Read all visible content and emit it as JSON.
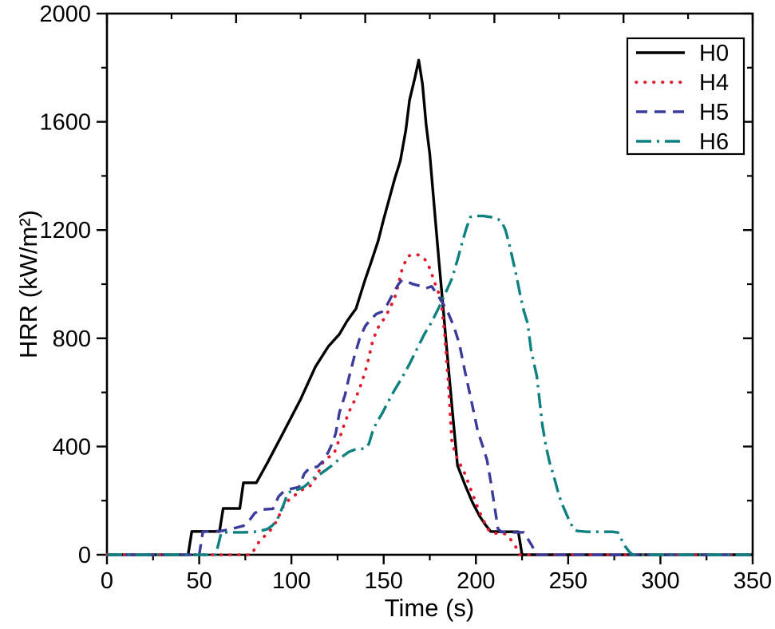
{
  "figure": {
    "background": "#ffffff",
    "frame_color": "#000000"
  },
  "chart_data": {
    "type": "line",
    "title": "",
    "xlabel": "Time (s)",
    "ylabel": "HRR (kW/m²)",
    "xlim": [
      0,
      350
    ],
    "ylim": [
      0,
      2000
    ],
    "grid": false,
    "legend_position": "top-right",
    "x_major_ticks": [
      0,
      50,
      100,
      150,
      200,
      250,
      300,
      350
    ],
    "x_minor_ticks": [
      25,
      75,
      125,
      175,
      225,
      275,
      325
    ],
    "top_major_ticks": [
      0,
      70,
      140,
      210,
      280,
      350
    ],
    "top_minor_ticks": [
      35,
      105,
      175,
      245,
      315
    ],
    "y_major_ticks": [
      0,
      400,
      800,
      1200,
      1600,
      2000
    ],
    "y_minor_ticks": [
      200,
      600,
      1000,
      1400,
      1800
    ],
    "legend_entries": [
      "H0",
      "H4",
      "H5",
      "H6"
    ],
    "series": [
      {
        "name": "H0",
        "color": "#000000",
        "line_style": "solid",
        "points": [
          [
            0,
            0
          ],
          [
            20,
            0
          ],
          [
            44,
            0
          ],
          [
            46,
            86
          ],
          [
            61,
            86
          ],
          [
            63,
            171
          ],
          [
            72,
            171
          ],
          [
            74,
            266
          ],
          [
            81,
            266
          ],
          [
            87,
            340
          ],
          [
            96,
            457
          ],
          [
            105,
            575
          ],
          [
            113,
            695
          ],
          [
            120,
            770
          ],
          [
            126,
            815
          ],
          [
            130,
            862
          ],
          [
            133,
            891
          ],
          [
            135,
            909
          ],
          [
            140,
            1018
          ],
          [
            143,
            1077
          ],
          [
            147,
            1160
          ],
          [
            150,
            1240
          ],
          [
            156,
            1390
          ],
          [
            159,
            1455
          ],
          [
            162,
            1570
          ],
          [
            164,
            1680
          ],
          [
            167,
            1765
          ],
          [
            169,
            1828
          ],
          [
            171,
            1740
          ],
          [
            173,
            1590
          ],
          [
            175,
            1480
          ],
          [
            178,
            1240
          ],
          [
            180,
            1080
          ],
          [
            182,
            930
          ],
          [
            184,
            775
          ],
          [
            187,
            550
          ],
          [
            190,
            330
          ],
          [
            194,
            260
          ],
          [
            198,
            195
          ],
          [
            202,
            143
          ],
          [
            205,
            112
          ],
          [
            208,
            86
          ],
          [
            215,
            85
          ],
          [
            223,
            85
          ],
          [
            225,
            0
          ],
          [
            260,
            0
          ],
          [
            300,
            0
          ],
          [
            350,
            0
          ]
        ]
      },
      {
        "name": "H4",
        "color": "#e2182d",
        "line_style": "dotted",
        "points": [
          [
            0,
            0
          ],
          [
            30,
            0
          ],
          [
            60,
            0
          ],
          [
            78,
            0
          ],
          [
            81,
            30
          ],
          [
            83,
            55
          ],
          [
            86,
            72
          ],
          [
            88,
            85
          ],
          [
            92,
            125
          ],
          [
            96,
            185
          ],
          [
            99,
            205
          ],
          [
            101,
            215
          ],
          [
            104,
            232
          ],
          [
            107,
            245
          ],
          [
            111,
            258
          ],
          [
            114,
            295
          ],
          [
            117,
            340
          ],
          [
            120,
            360
          ],
          [
            123,
            372
          ],
          [
            126,
            428
          ],
          [
            129,
            490
          ],
          [
            132,
            540
          ],
          [
            135,
            580
          ],
          [
            138,
            635
          ],
          [
            141,
            700
          ],
          [
            144,
            790
          ],
          [
            147,
            840
          ],
          [
            150,
            870
          ],
          [
            153,
            905
          ],
          [
            156,
            950
          ],
          [
            158,
            1000
          ],
          [
            160,
            1056
          ],
          [
            163,
            1103
          ],
          [
            166,
            1110
          ],
          [
            169,
            1108
          ],
          [
            172,
            1095
          ],
          [
            175,
            1058
          ],
          [
            178,
            1000
          ],
          [
            181,
            945
          ],
          [
            183,
            820
          ],
          [
            185,
            640
          ],
          [
            187,
            413
          ],
          [
            190,
            354
          ],
          [
            194,
            300
          ],
          [
            197,
            245
          ],
          [
            200,
            192
          ],
          [
            203,
            142
          ],
          [
            207,
            89
          ],
          [
            210,
            80
          ],
          [
            216,
            77
          ],
          [
            219,
            55
          ],
          [
            222,
            25
          ],
          [
            224,
            0
          ],
          [
            260,
            0
          ],
          [
            310,
            0
          ],
          [
            350,
            0
          ]
        ]
      },
      {
        "name": "H5",
        "color": "#3b3b9c",
        "line_style": "dashed",
        "points": [
          [
            0,
            0
          ],
          [
            25,
            0
          ],
          [
            50,
            0
          ],
          [
            52,
            85
          ],
          [
            57,
            87
          ],
          [
            62,
            88
          ],
          [
            66,
            93
          ],
          [
            70,
            100
          ],
          [
            74,
            107
          ],
          [
            77,
            125
          ],
          [
            80,
            153
          ],
          [
            83,
            166
          ],
          [
            86,
            168
          ],
          [
            90,
            170
          ],
          [
            93,
            215
          ],
          [
            96,
            235
          ],
          [
            100,
            244
          ],
          [
            104,
            250
          ],
          [
            107,
            300
          ],
          [
            110,
            322
          ],
          [
            114,
            325
          ],
          [
            117,
            345
          ],
          [
            120,
            380
          ],
          [
            122,
            410
          ],
          [
            124,
            448
          ],
          [
            126,
            525
          ],
          [
            129,
            590
          ],
          [
            131,
            650
          ],
          [
            134,
            730
          ],
          [
            137,
            800
          ],
          [
            140,
            845
          ],
          [
            143,
            870
          ],
          [
            146,
            890
          ],
          [
            149,
            898
          ],
          [
            152,
            925
          ],
          [
            155,
            965
          ],
          [
            158,
            1000
          ],
          [
            160,
            1015
          ],
          [
            163,
            1008
          ],
          [
            166,
            1000
          ],
          [
            170,
            993
          ],
          [
            173,
            985
          ],
          [
            176,
            992
          ],
          [
            179,
            962
          ],
          [
            182,
            930
          ],
          [
            185,
            893
          ],
          [
            188,
            845
          ],
          [
            191,
            780
          ],
          [
            194,
            680
          ],
          [
            197,
            585
          ],
          [
            201,
            457
          ],
          [
            204,
            395
          ],
          [
            206,
            350
          ],
          [
            208,
            271
          ],
          [
            210,
            183
          ],
          [
            212,
            95
          ],
          [
            214,
            84
          ],
          [
            220,
            83
          ],
          [
            226,
            83
          ],
          [
            228,
            60
          ],
          [
            230,
            38
          ],
          [
            233,
            0
          ],
          [
            250,
            0
          ],
          [
            300,
            0
          ],
          [
            350,
            0
          ]
        ]
      },
      {
        "name": "H6",
        "color": "#0d8080",
        "line_style": "dash-dot",
        "points": [
          [
            0,
            0
          ],
          [
            30,
            0
          ],
          [
            59,
            0
          ],
          [
            62,
            83
          ],
          [
            68,
            83
          ],
          [
            74,
            83
          ],
          [
            79,
            84
          ],
          [
            83,
            88
          ],
          [
            87,
            95
          ],
          [
            90,
            110
          ],
          [
            93,
            140
          ],
          [
            96,
            190
          ],
          [
            98,
            227
          ],
          [
            101,
            240
          ],
          [
            104,
            242
          ],
          [
            107,
            252
          ],
          [
            110,
            270
          ],
          [
            113,
            290
          ],
          [
            116,
            300
          ],
          [
            119,
            315
          ],
          [
            122,
            330
          ],
          [
            125,
            348
          ],
          [
            128,
            365
          ],
          [
            131,
            380
          ],
          [
            134,
            388
          ],
          [
            137,
            391
          ],
          [
            140,
            393
          ],
          [
            142,
            410
          ],
          [
            144,
            455
          ],
          [
            146,
            487
          ],
          [
            149,
            520
          ],
          [
            152,
            560
          ],
          [
            156,
            610
          ],
          [
            160,
            655
          ],
          [
            164,
            705
          ],
          [
            168,
            760
          ],
          [
            172,
            815
          ],
          [
            176,
            860
          ],
          [
            180,
            915
          ],
          [
            184,
            975
          ],
          [
            187,
            1020
          ],
          [
            190,
            1090
          ],
          [
            193,
            1165
          ],
          [
            195,
            1210
          ],
          [
            197,
            1248
          ],
          [
            200,
            1252
          ],
          [
            204,
            1252
          ],
          [
            208,
            1248
          ],
          [
            212,
            1240
          ],
          [
            214,
            1230
          ],
          [
            216,
            1200
          ],
          [
            218,
            1150
          ],
          [
            220,
            1090
          ],
          [
            222,
            1030
          ],
          [
            224,
            960
          ],
          [
            226,
            900
          ],
          [
            228,
            856
          ],
          [
            230,
            752
          ],
          [
            233,
            660
          ],
          [
            236,
            480
          ],
          [
            238,
            400
          ],
          [
            240,
            340
          ],
          [
            242,
            295
          ],
          [
            245,
            220
          ],
          [
            247,
            183
          ],
          [
            250,
            135
          ],
          [
            253,
            95
          ],
          [
            255,
            88
          ],
          [
            260,
            85
          ],
          [
            268,
            85
          ],
          [
            274,
            85
          ],
          [
            277,
            82
          ],
          [
            279,
            55
          ],
          [
            281,
            30
          ],
          [
            283,
            12
          ],
          [
            285,
            0
          ],
          [
            310,
            0
          ],
          [
            350,
            0
          ]
        ]
      }
    ]
  }
}
